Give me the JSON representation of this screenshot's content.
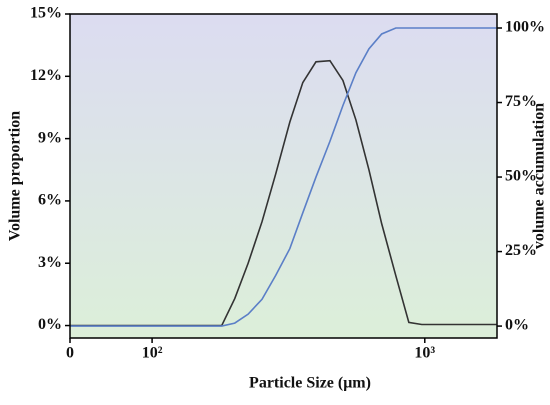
{
  "chart_data": {
    "type": "line",
    "xlabel": "Particle Size (μm)",
    "ylabel": "Volume proportion",
    "y2label": "volume accumulation",
    "xscale": "log",
    "xlim": [
      50,
      1840
    ],
    "xticks": [
      {
        "value": 50,
        "label": "0"
      },
      {
        "value": 100,
        "label": "10²"
      },
      {
        "value": 1000,
        "label": "10³"
      }
    ],
    "ylim": [
      -0.6,
      15
    ],
    "yticks": [
      {
        "value": 0,
        "label": "0%"
      },
      {
        "value": 3,
        "label": "3%"
      },
      {
        "value": 6,
        "label": "6%"
      },
      {
        "value": 9,
        "label": "9%"
      },
      {
        "value": 12,
        "label": "12%"
      },
      {
        "value": 15,
        "label": "15%"
      }
    ],
    "y2lim": [
      -4,
      104.7
    ],
    "y2ticks": [
      {
        "value": 0,
        "label": "0%"
      },
      {
        "value": 25,
        "label": "25%"
      },
      {
        "value": 50,
        "label": "50%"
      },
      {
        "value": 75,
        "label": "75%"
      },
      {
        "value": 100,
        "label": "100%"
      }
    ],
    "x": [
      50,
      180,
      201,
      225,
      253,
      284,
      320,
      357,
      399,
      449,
      501,
      559,
      624,
      695,
      783,
      874,
      975,
      1830
    ],
    "series": [
      {
        "color": "#333333",
        "axis": "y",
        "values": [
          0,
          0,
          1.3,
          3.0,
          5.0,
          7.3,
          9.8,
          11.7,
          12.7,
          12.75,
          11.8,
          9.9,
          7.5,
          4.9,
          2.4,
          0.15,
          0.05,
          0.05
        ]
      },
      {
        "color": "#5b7fc7",
        "axis": "y2",
        "values": [
          0,
          0,
          1,
          4,
          9,
          17,
          26,
          38,
          50,
          62,
          74,
          85,
          93,
          98,
          100,
          100,
          100,
          100
        ]
      }
    ]
  }
}
